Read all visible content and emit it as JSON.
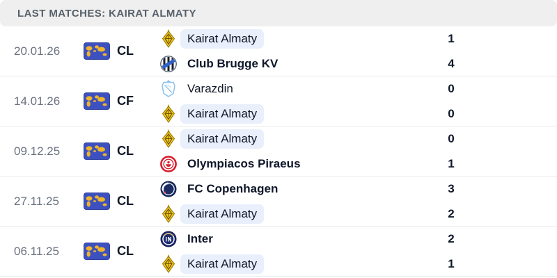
{
  "header": {
    "title": "LAST MATCHES: KAIRAT ALMATY"
  },
  "highlighted_team": "Kairat Almaty",
  "colors": {
    "header_bg": "#efefef",
    "header_text": "#57606a",
    "highlight_pill_bg": "#e9effb",
    "date_text": "#6b7280",
    "name_text": "#111827",
    "row_divider": "#e9ebee",
    "competition_flag_blue": "#3c50c0",
    "competition_flag_map_yellow": "#f0b429"
  },
  "matches": [
    {
      "date": "20.01.26",
      "competition": {
        "code": "CL",
        "icon": "world-flag-icon"
      },
      "home": {
        "name": "Kairat Almaty",
        "logo": "kairat-almaty",
        "score": "1",
        "bold": false,
        "highlight": true
      },
      "away": {
        "name": "Club Brugge KV",
        "logo": "club-brugge",
        "score": "4",
        "bold": true,
        "highlight": false
      }
    },
    {
      "date": "14.01.26",
      "competition": {
        "code": "CF",
        "icon": "world-flag-icon"
      },
      "home": {
        "name": "Varazdin",
        "logo": "varazdin",
        "score": "0",
        "bold": false,
        "highlight": false
      },
      "away": {
        "name": "Kairat Almaty",
        "logo": "kairat-almaty",
        "score": "0",
        "bold": false,
        "highlight": true
      }
    },
    {
      "date": "09.12.25",
      "competition": {
        "code": "CL",
        "icon": "world-flag-icon"
      },
      "home": {
        "name": "Kairat Almaty",
        "logo": "kairat-almaty",
        "score": "0",
        "bold": false,
        "highlight": true
      },
      "away": {
        "name": "Olympiacos Piraeus",
        "logo": "olympiacos",
        "score": "1",
        "bold": true,
        "highlight": false
      }
    },
    {
      "date": "27.11.25",
      "competition": {
        "code": "CL",
        "icon": "world-flag-icon"
      },
      "home": {
        "name": "FC Copenhagen",
        "logo": "fc-copenhagen",
        "score": "3",
        "bold": true,
        "highlight": false
      },
      "away": {
        "name": "Kairat Almaty",
        "logo": "kairat-almaty",
        "score": "2",
        "bold": false,
        "highlight": true
      }
    },
    {
      "date": "06.11.25",
      "competition": {
        "code": "CL",
        "icon": "world-flag-icon"
      },
      "home": {
        "name": "Inter",
        "logo": "inter",
        "score": "2",
        "bold": true,
        "highlight": false
      },
      "away": {
        "name": "Kairat Almaty",
        "logo": "kairat-almaty",
        "score": "1",
        "bold": false,
        "highlight": true
      }
    }
  ]
}
